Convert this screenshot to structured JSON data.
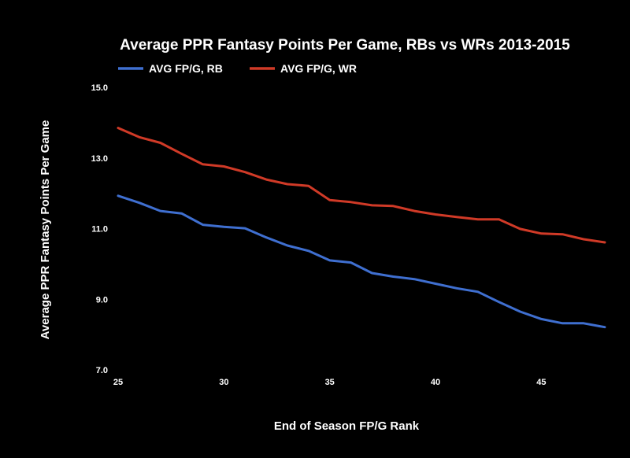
{
  "chart_data": {
    "type": "line",
    "title": "Average PPR Fantasy Points Per Game, RBs vs WRs 2013-2015",
    "xlabel": "End of Season FP/G Rank",
    "ylabel": "Average PPR Fantasy Points Per Game",
    "xlim": [
      25,
      48
    ],
    "ylim": [
      7.0,
      15.0
    ],
    "x_ticks": [
      25,
      30,
      35,
      40,
      45
    ],
    "x_tick_labels": [
      "25",
      "30",
      "35",
      "40",
      "45"
    ],
    "y_ticks": [
      7,
      9,
      11,
      13,
      15
    ],
    "y_tick_labels": [
      "7.0",
      "9.0",
      "11.0",
      "13.0",
      "15.0"
    ],
    "grid": false,
    "legend_position": "top-left",
    "x": [
      25,
      26,
      27,
      28,
      29,
      30,
      31,
      32,
      33,
      34,
      35,
      36,
      37,
      38,
      39,
      40,
      41,
      42,
      43,
      44,
      45,
      46,
      47,
      48
    ],
    "series": [
      {
        "name": "AVG FP/G, RB",
        "color": "#3f6fd0",
        "values": [
          11.93,
          11.73,
          11.5,
          11.43,
          11.11,
          11.05,
          11.01,
          10.75,
          10.52,
          10.37,
          10.1,
          10.04,
          9.74,
          9.64,
          9.57,
          9.44,
          9.31,
          9.21,
          8.92,
          8.65,
          8.44,
          8.32,
          8.32,
          8.21
        ]
      },
      {
        "name": "AVG FP/G, WR",
        "color": "#d03a27",
        "values": [
          13.85,
          13.59,
          13.43,
          13.12,
          12.82,
          12.76,
          12.6,
          12.39,
          12.26,
          12.21,
          11.81,
          11.75,
          11.66,
          11.64,
          11.5,
          11.4,
          11.33,
          11.26,
          11.26,
          10.99,
          10.86,
          10.84,
          10.7,
          10.61
        ]
      }
    ]
  }
}
